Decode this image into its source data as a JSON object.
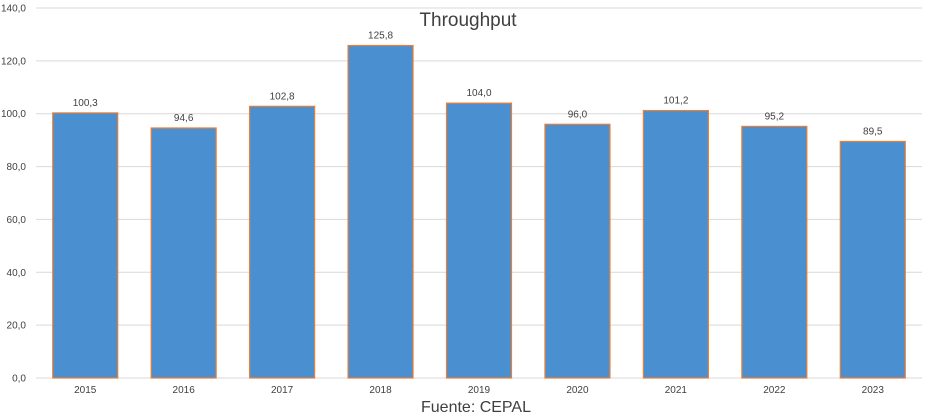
{
  "chart_data": {
    "type": "bar",
    "title": "Throughput",
    "source": "Fuente: CEPAL",
    "categories": [
      "2015",
      "2016",
      "2017",
      "2018",
      "2019",
      "2020",
      "2021",
      "2022",
      "2023"
    ],
    "values": [
      100.3,
      94.6,
      102.8,
      125.8,
      104.0,
      96.0,
      101.2,
      95.2,
      89.5
    ],
    "data_labels": [
      "100,3",
      "94,6",
      "102,8",
      "125,8",
      "104,0",
      "96,0",
      "101,2",
      "95,2",
      "89,5"
    ],
    "yticks": [
      "0,0",
      "20,0",
      "40,0",
      "60,0",
      "80,0",
      "100,0",
      "120,0",
      "140,0"
    ],
    "ylim": [
      0,
      140
    ],
    "xlabel": "",
    "ylabel": "",
    "grid": true,
    "legend": "none",
    "colors": {
      "bar_fill": "#4a90d0",
      "bar_border": "#ed7d31",
      "text": "#404040",
      "grid": "#d9d9d9"
    }
  }
}
